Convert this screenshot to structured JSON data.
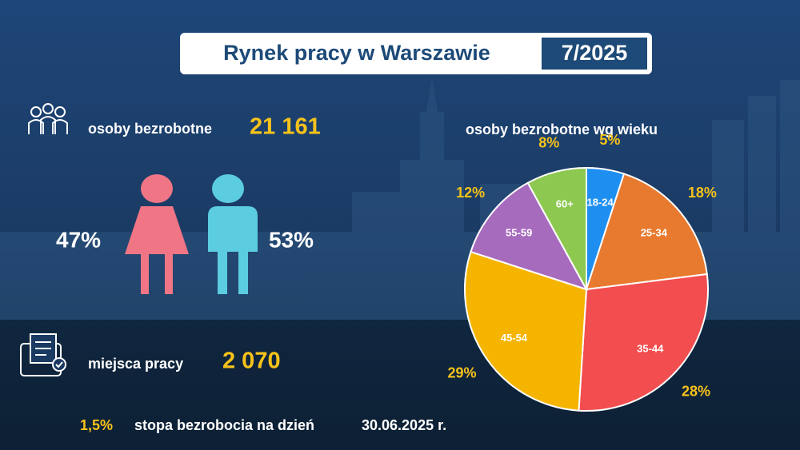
{
  "header": {
    "title": "Rynek pracy w Warszawie",
    "period": "7/2025"
  },
  "stats": {
    "unemployed_label": "osoby bezrobotne",
    "unemployed_value": "21 161",
    "women_share": "47%",
    "men_share": "53%",
    "jobs_label": "miejsca pracy",
    "jobs_value": "2 070",
    "rate_value": "1,5%",
    "rate_label": "stopa bezrobocia na dzień",
    "rate_date": "30.06.2025 r."
  },
  "chart_data": {
    "type": "pie",
    "title": "osoby bezrobotne wg wieku",
    "categories": [
      "18-24",
      "25-34",
      "35-44",
      "45-54",
      "55-59",
      "60+"
    ],
    "values": [
      5,
      18,
      28,
      29,
      12,
      8
    ],
    "value_labels": [
      "5%",
      "18%",
      "28%",
      "29%",
      "12%",
      "8%"
    ],
    "colors": [
      "#1e8ff0",
      "#e87a30",
      "#f24d4f",
      "#f5b400",
      "#a76bbd",
      "#8dc850"
    ]
  }
}
